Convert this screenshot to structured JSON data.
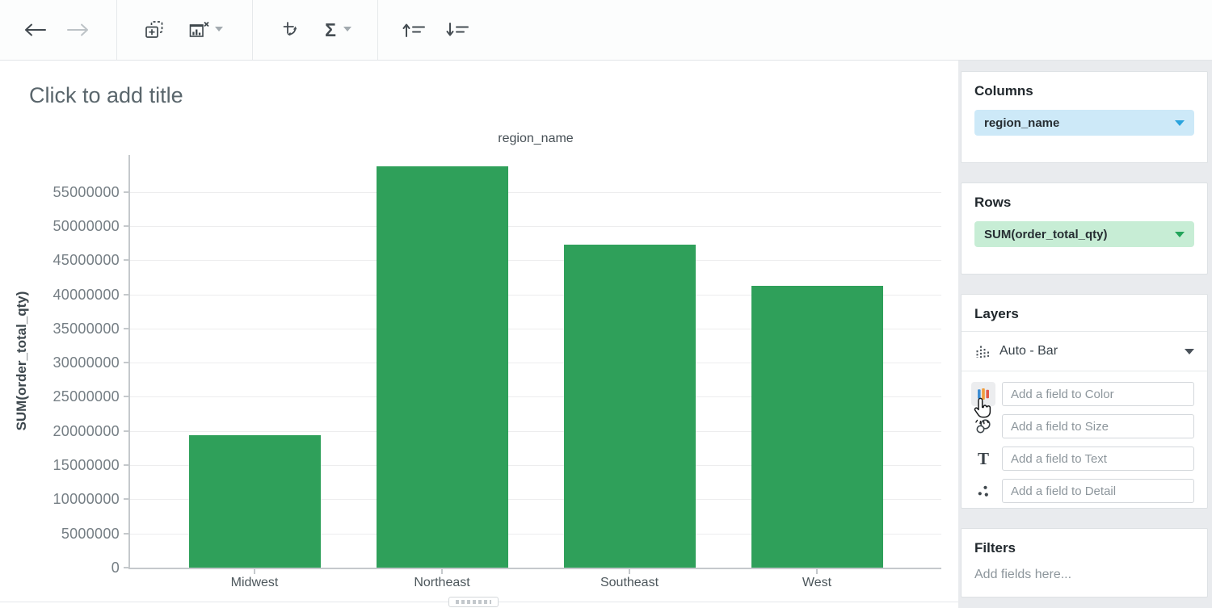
{
  "toolbar": {
    "sigma": "Σ"
  },
  "canvas": {
    "title_placeholder": "Click to add title"
  },
  "chart_data": {
    "type": "bar",
    "title": "region_name",
    "xlabel": "region_name",
    "ylabel": "SUM(order_total_qty)",
    "categories": [
      "Midwest",
      "Northeast",
      "Southeast",
      "West"
    ],
    "values": [
      19400000,
      58800000,
      47300000,
      41300000
    ],
    "yticks": [
      0,
      5000000,
      10000000,
      15000000,
      20000000,
      25000000,
      30000000,
      35000000,
      40000000,
      45000000,
      50000000,
      55000000
    ],
    "ylim": [
      0,
      60400000
    ],
    "bar_color": "#2fa05a",
    "grid": true,
    "legend": false
  },
  "panel": {
    "columns": {
      "title": "Columns",
      "pill_label": "region_name",
      "pill_bg": "#cde9f8",
      "caret_color": "#2aa3dd"
    },
    "rows": {
      "title": "Rows",
      "pill_label": "SUM(order_total_qty)",
      "pill_bg": "#c7edd5",
      "caret_color": "#23a45b"
    },
    "layers": {
      "title": "Layers",
      "layer_type": "Auto - Bar",
      "text_icon_glyph": "T",
      "fields": [
        {
          "icon": "color-icon",
          "placeholder": "Add a field to Color"
        },
        {
          "icon": "size-icon",
          "placeholder": "Add a field to Size"
        },
        {
          "icon": "text-icon",
          "placeholder": "Add a field to Text"
        },
        {
          "icon": "detail-icon",
          "placeholder": "Add a field to Detail"
        }
      ]
    },
    "filters": {
      "title": "Filters",
      "placeholder": "Add fields here..."
    }
  }
}
